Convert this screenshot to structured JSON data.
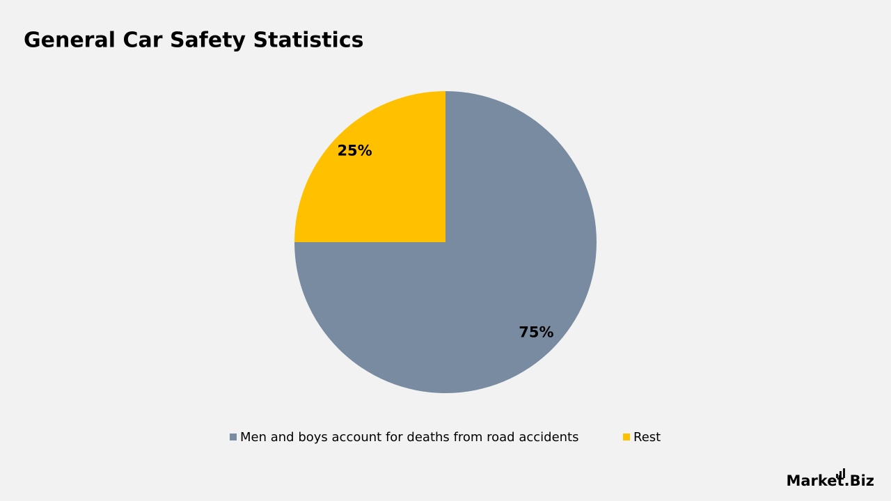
{
  "chart_data": {
    "type": "pie",
    "title": "General Car Safety Statistics",
    "categories": [
      "Men and boys account for deaths from road accidents",
      "Rest"
    ],
    "series": [
      {
        "name": "Share",
        "colors": [
          "#788ba0",
          "#ffc000"
        ],
        "values": [
          75,
          25
        ],
        "value_labels": [
          "75%",
          "25%"
        ]
      }
    ],
    "legend": "bottom",
    "watermark": "Market.Biz"
  }
}
